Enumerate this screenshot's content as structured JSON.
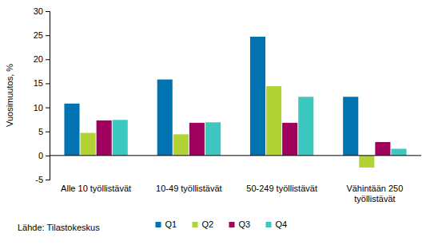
{
  "chart_data": {
    "type": "bar",
    "y_label": "Vuosimuutos, %",
    "source": "Lähde: Tilastokeskus",
    "categories": [
      "Alle 10 työllistävät",
      "10-49 työllistävät",
      "50-249 työllistävät",
      "Vähintään 250 työllistävät"
    ],
    "series": [
      {
        "name": "Q1",
        "color": "#0073b0",
        "values": [
          10.8,
          15.8,
          24.7,
          12.2
        ]
      },
      {
        "name": "Q2",
        "color": "#b1d334",
        "values": [
          4.7,
          4.4,
          14.4,
          -2.5
        ]
      },
      {
        "name": "Q3",
        "color": "#a0005e",
        "values": [
          7.3,
          6.8,
          6.8,
          2.8
        ]
      },
      {
        "name": "Q4",
        "color": "#3cc8c0",
        "values": [
          7.4,
          6.9,
          12.2,
          1.4
        ]
      }
    ],
    "ylim": [
      -5,
      30
    ],
    "yticks": [
      -5,
      0,
      5,
      10,
      15,
      20,
      25,
      30
    ],
    "grid": false,
    "legend": "bottom"
  }
}
